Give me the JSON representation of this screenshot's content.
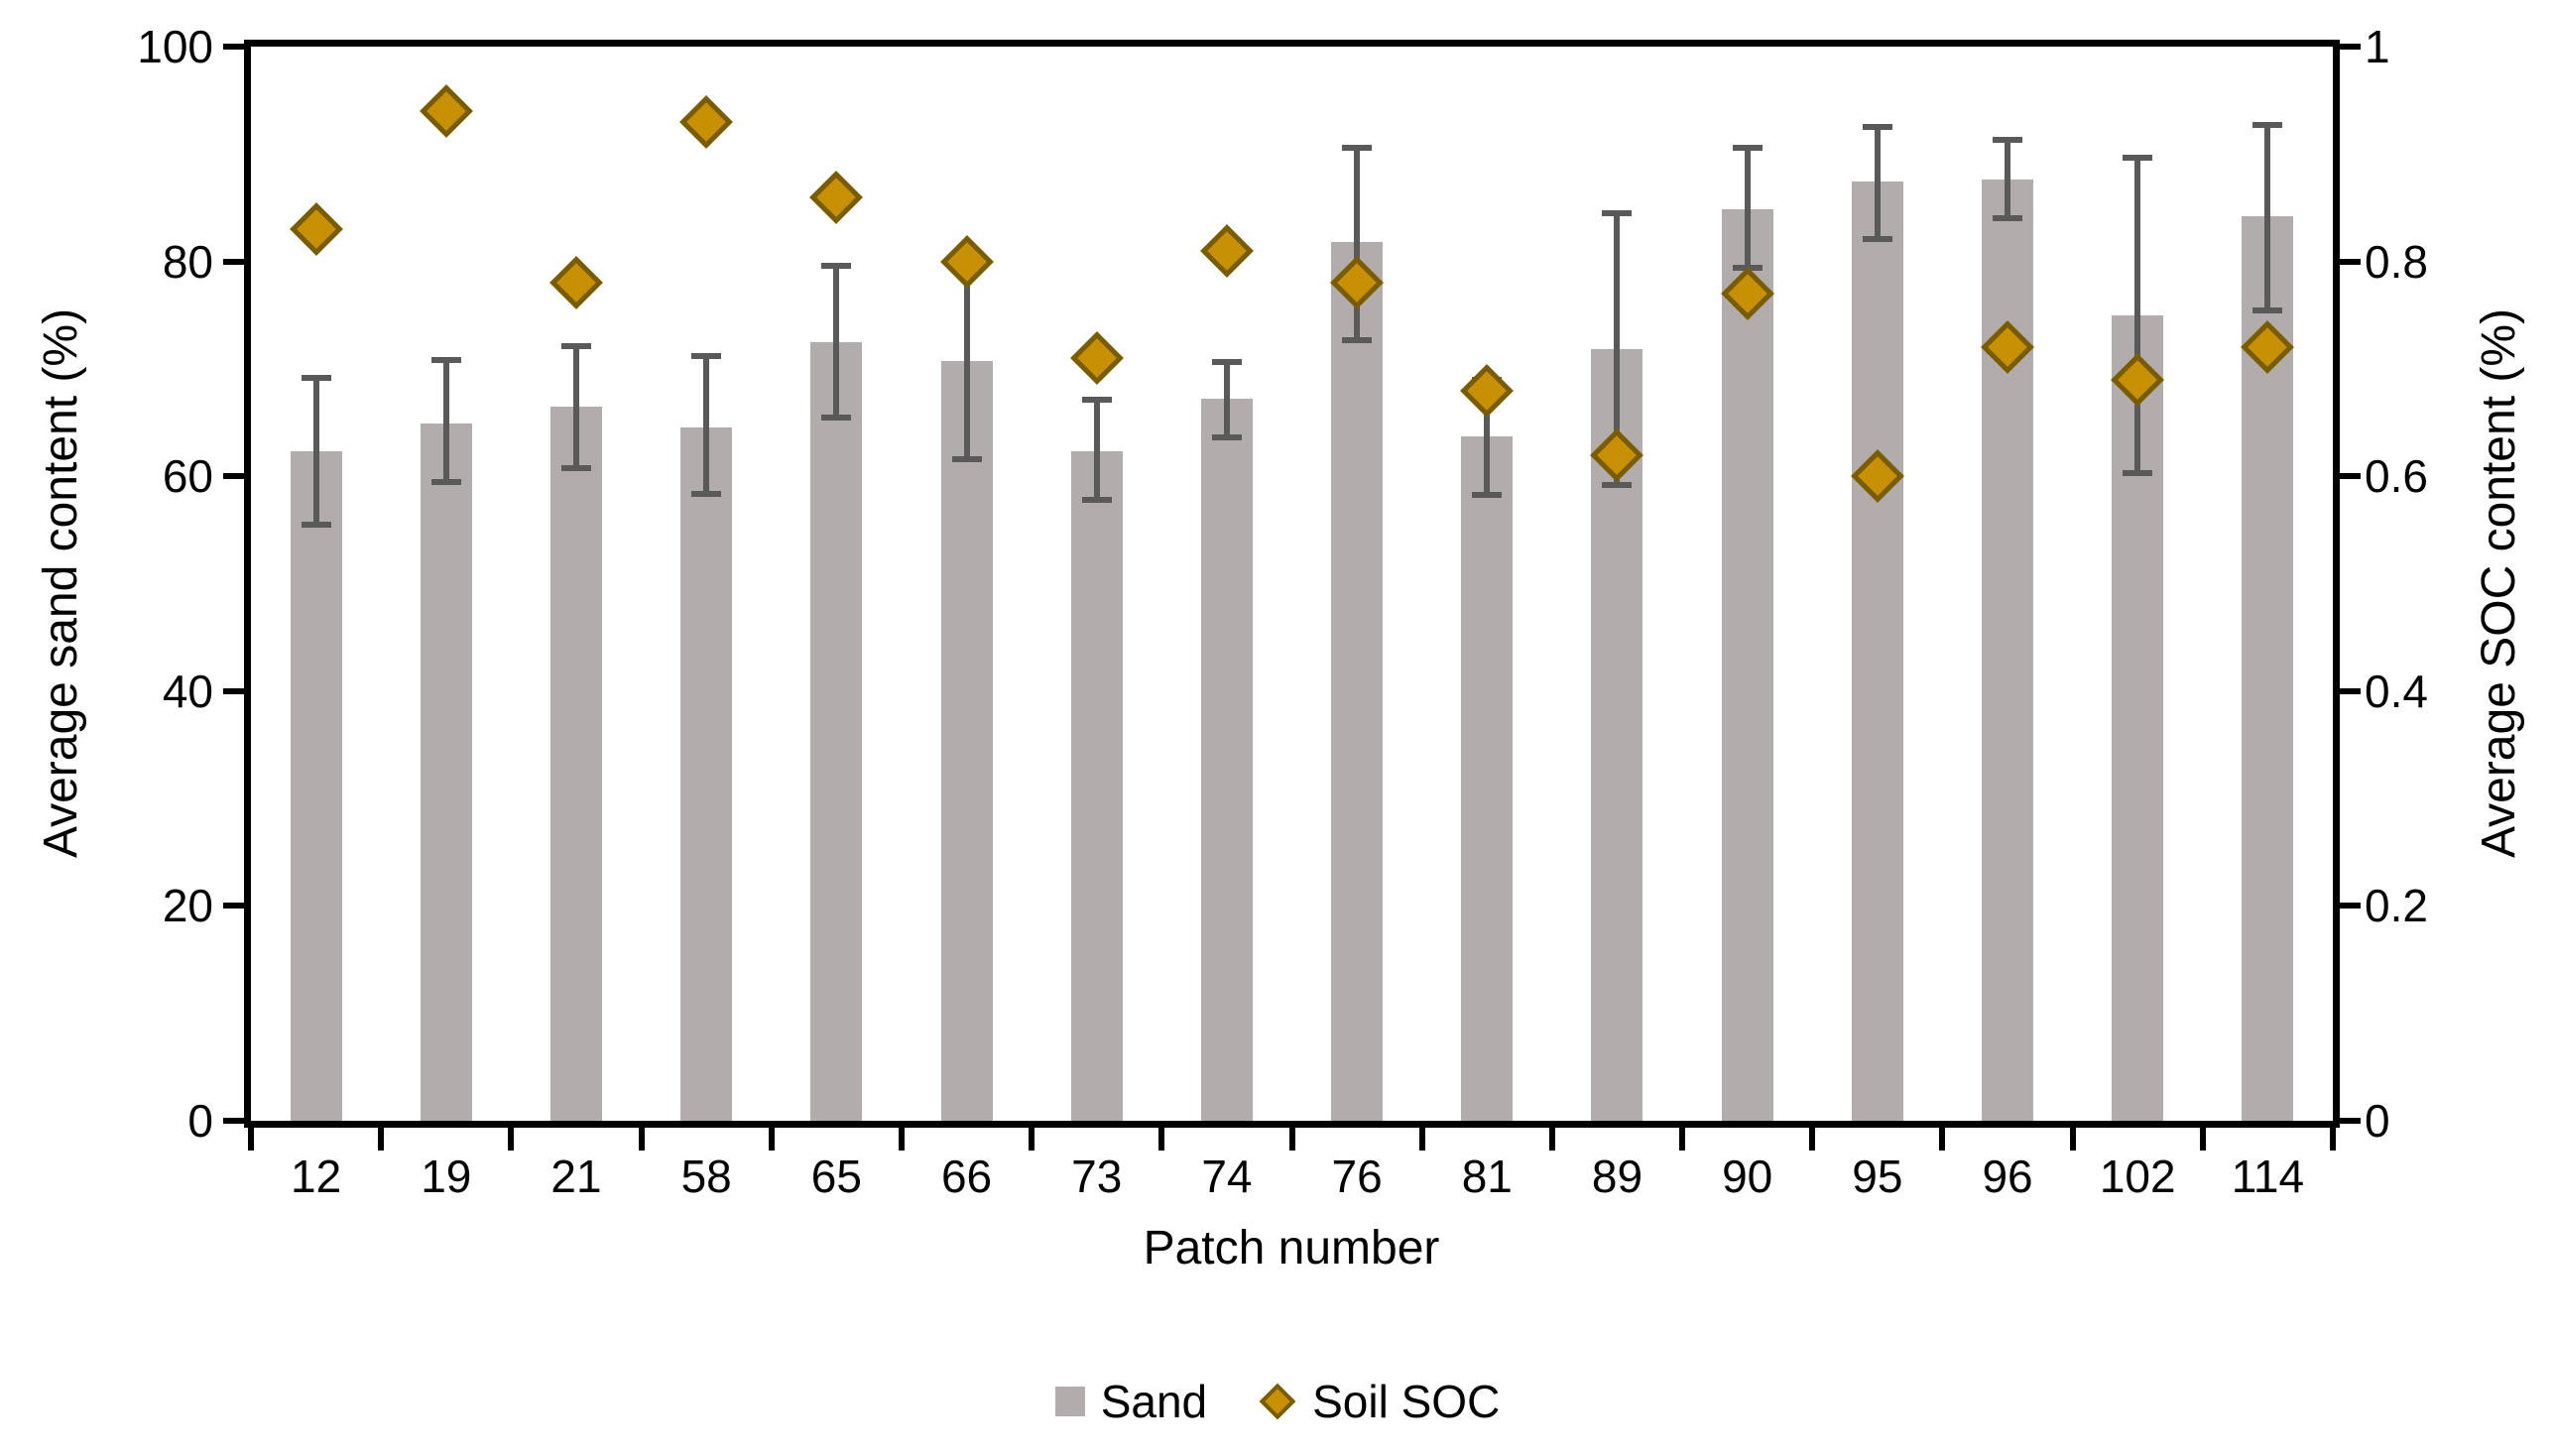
{
  "chart_data": {
    "type": "bar",
    "title": "",
    "xlabel": "Patch number",
    "categories": [
      "12",
      "19",
      "21",
      "58",
      "65",
      "66",
      "73",
      "74",
      "76",
      "81",
      "89",
      "90",
      "95",
      "96",
      "102",
      "114"
    ],
    "series": [
      {
        "name": "Sand",
        "type": "bar",
        "axis": "left",
        "color": "#b2adac",
        "values": [
          62.3,
          64.9,
          66.5,
          64.5,
          72.5,
          70.7,
          62.3,
          67.2,
          81.8,
          63.7,
          71.8,
          84.9,
          87.4,
          87.6,
          75.0,
          84.2
        ],
        "error_high": [
          69.2,
          70.8,
          72.1,
          71.2,
          79.6,
          79.6,
          67.1,
          70.6,
          90.6,
          69.0,
          84.5,
          90.6,
          92.5,
          91.3,
          89.7,
          92.7
        ],
        "error_low": [
          55.5,
          59.5,
          60.8,
          58.4,
          65.5,
          61.6,
          57.8,
          63.6,
          72.7,
          58.3,
          59.2,
          79.4,
          82.1,
          84.0,
          60.3,
          75.4
        ],
        "error_color": "#595959"
      },
      {
        "name": "Soil SOC",
        "type": "scatter",
        "marker": "diamond",
        "axis": "right",
        "color": "#c89004",
        "border_color": "#7a5c00",
        "values": [
          0.83,
          0.94,
          0.78,
          0.93,
          0.86,
          0.8,
          0.71,
          0.81,
          0.78,
          0.68,
          0.62,
          0.77,
          0.6,
          0.72,
          0.69,
          0.72
        ]
      }
    ],
    "left_axis": {
      "label": "Average sand content (%)",
      "min": 0,
      "max": 100,
      "ticks": [
        "0",
        "20",
        "40",
        "60",
        "80",
        "100"
      ]
    },
    "right_axis": {
      "label": "Average SOC content  (%)",
      "min": 0,
      "max": 1,
      "ticks": [
        "0",
        "0.2",
        "0.4",
        "0.6",
        "0.8",
        "1"
      ]
    },
    "grid": false,
    "legend_position": "bottom"
  }
}
